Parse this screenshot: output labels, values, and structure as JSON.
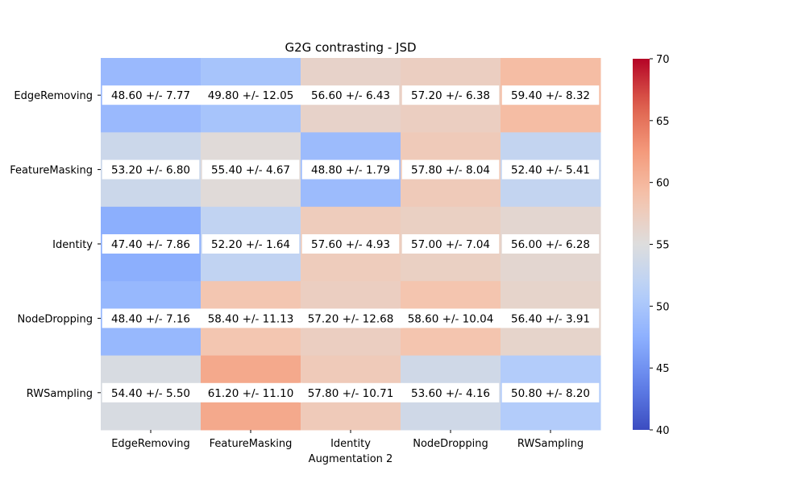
{
  "chart_data": {
    "type": "heatmap",
    "title": "G2G contrasting - JSD",
    "xlabel": "Augmentation 2",
    "ylabel": "",
    "x_categories": [
      "EdgeRemoving",
      "FeatureMasking",
      "Identity",
      "NodeDropping",
      "RWSampling"
    ],
    "y_categories": [
      "EdgeRemoving",
      "FeatureMasking",
      "Identity",
      "NodeDropping",
      "RWSampling"
    ],
    "values": [
      [
        48.6,
        49.8,
        56.6,
        57.2,
        59.4
      ],
      [
        53.2,
        55.4,
        48.8,
        57.8,
        52.4
      ],
      [
        47.4,
        52.2,
        57.6,
        57.0,
        56.0
      ],
      [
        48.4,
        58.4,
        57.2,
        58.6,
        56.4
      ],
      [
        54.4,
        61.2,
        57.8,
        53.6,
        50.8
      ]
    ],
    "std": [
      [
        7.77,
        12.05,
        6.43,
        6.38,
        8.32
      ],
      [
        6.8,
        4.67,
        1.79,
        8.04,
        5.41
      ],
      [
        7.86,
        1.64,
        4.93,
        7.04,
        6.28
      ],
      [
        7.16,
        11.13,
        12.68,
        10.04,
        3.91
      ],
      [
        5.5,
        11.1,
        10.71,
        4.16,
        8.2
      ]
    ],
    "annotations": [
      [
        "48.60 +/- 7.77",
        "49.80 +/- 12.05",
        "56.60 +/- 6.43",
        "57.20 +/- 6.38",
        "59.40 +/- 8.32"
      ],
      [
        "53.20 +/- 6.80",
        "55.40 +/- 4.67",
        "48.80 +/- 1.79",
        "57.80 +/- 8.04",
        "52.40 +/- 5.41"
      ],
      [
        "47.40 +/- 7.86",
        "52.20 +/- 1.64",
        "57.60 +/- 4.93",
        "57.00 +/- 7.04",
        "56.00 +/- 6.28"
      ],
      [
        "48.40 +/- 7.16",
        "58.40 +/- 11.13",
        "57.20 +/- 12.68",
        "58.60 +/- 10.04",
        "56.40 +/- 3.91"
      ],
      [
        "54.40 +/- 5.50",
        "61.20 +/- 11.10",
        "57.80 +/- 10.71",
        "53.60 +/- 4.16",
        "50.80 +/- 8.20"
      ]
    ],
    "colormap": "coolwarm",
    "vmin": 40,
    "vmax": 70,
    "colorbar_ticks": [
      40,
      45,
      50,
      55,
      60,
      65,
      70
    ],
    "colorbar_tick_labels": [
      "40",
      "45",
      "50",
      "55",
      "60",
      "65",
      "70"
    ]
  }
}
